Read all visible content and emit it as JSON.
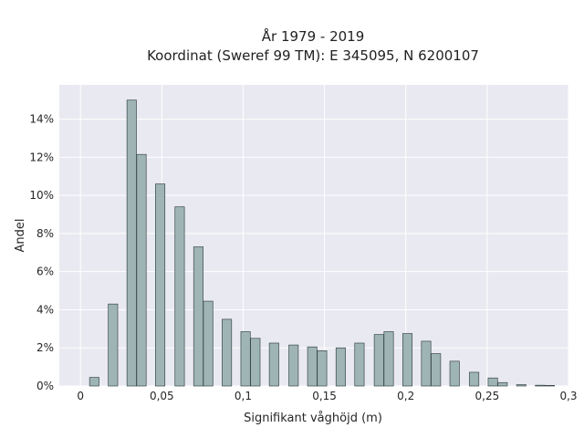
{
  "chart_data": {
    "type": "bar",
    "title": [
      "År 1979 - 2019",
      "Koordinat (Sweref 99 TM): E 345095, N 6200107"
    ],
    "xlabel": "Signifikant våghöjd (m)",
    "ylabel": "Andel",
    "xlim": [
      -0.013,
      0.3
    ],
    "ylim": [
      0,
      15.8
    ],
    "bar_width": 0.0058,
    "x_ticks": [
      {
        "value": 0,
        "label": "0"
      },
      {
        "value": 0.05,
        "label": "0,05"
      },
      {
        "value": 0.1,
        "label": "0,1"
      },
      {
        "value": 0.15,
        "label": "0,15"
      },
      {
        "value": 0.2,
        "label": "0,2"
      },
      {
        "value": 0.25,
        "label": "0,25"
      },
      {
        "value": 0.3,
        "label": "0,3"
      }
    ],
    "y_ticks": [
      {
        "value": 0,
        "label": "0%"
      },
      {
        "value": 2,
        "label": "2%"
      },
      {
        "value": 4,
        "label": "4%"
      },
      {
        "value": 6,
        "label": "6%"
      },
      {
        "value": 8,
        "label": "8%"
      },
      {
        "value": 10,
        "label": "10%"
      },
      {
        "value": 12,
        "label": "12%"
      },
      {
        "value": 14,
        "label": "14%"
      }
    ],
    "grid": true,
    "colors": {
      "bar_fill": "#9fb5b5",
      "bar_edge": "#3a4848",
      "plot_bg": "#e9e9f1",
      "grid": "#ffffff"
    },
    "bars": [
      {
        "x": 0.0085,
        "value": 0.45
      },
      {
        "x": 0.02,
        "value": 4.3
      },
      {
        "x": 0.0315,
        "value": 15.0
      },
      {
        "x": 0.0375,
        "value": 12.15
      },
      {
        "x": 0.049,
        "value": 10.6
      },
      {
        "x": 0.061,
        "value": 9.4
      },
      {
        "x": 0.0725,
        "value": 7.3
      },
      {
        "x": 0.0785,
        "value": 4.45
      },
      {
        "x": 0.09,
        "value": 3.5
      },
      {
        "x": 0.1015,
        "value": 2.85
      },
      {
        "x": 0.1075,
        "value": 2.5
      },
      {
        "x": 0.119,
        "value": 2.25
      },
      {
        "x": 0.131,
        "value": 2.15
      },
      {
        "x": 0.1425,
        "value": 2.05
      },
      {
        "x": 0.1485,
        "value": 1.85
      },
      {
        "x": 0.16,
        "value": 2.0
      },
      {
        "x": 0.1715,
        "value": 2.25
      },
      {
        "x": 0.1835,
        "value": 2.7
      },
      {
        "x": 0.1895,
        "value": 2.85
      },
      {
        "x": 0.201,
        "value": 2.75
      },
      {
        "x": 0.2125,
        "value": 2.35
      },
      {
        "x": 0.2185,
        "value": 1.7
      },
      {
        "x": 0.23,
        "value": 1.3
      },
      {
        "x": 0.242,
        "value": 0.72
      },
      {
        "x": 0.2535,
        "value": 0.42
      },
      {
        "x": 0.2595,
        "value": 0.18
      },
      {
        "x": 0.271,
        "value": 0.07
      },
      {
        "x": 0.2825,
        "value": 0.04
      },
      {
        "x": 0.2885,
        "value": 0.03
      }
    ]
  }
}
